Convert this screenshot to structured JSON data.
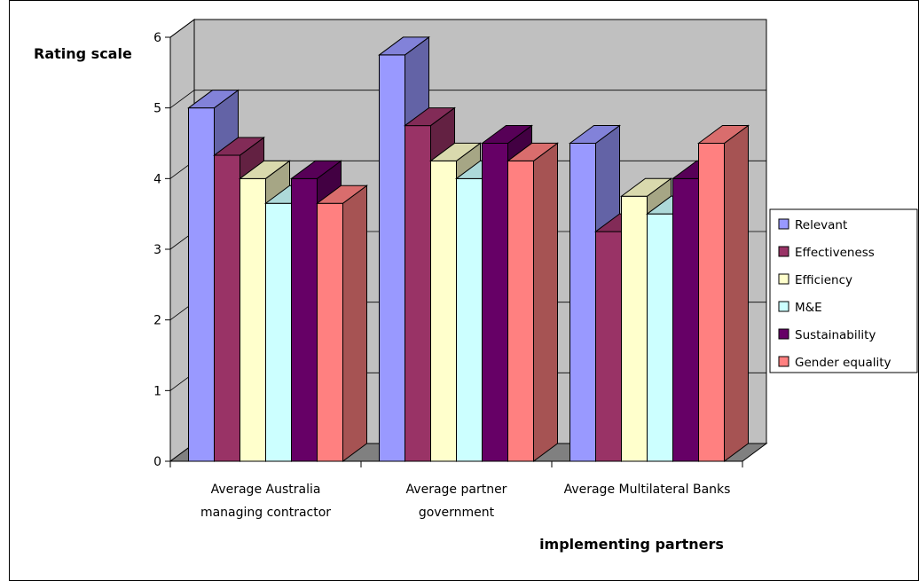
{
  "chart_data": {
    "type": "bar",
    "ylabel": "Rating scale",
    "xlabel": "implementing partners",
    "ylim": [
      0,
      6
    ],
    "yticks": [
      "0",
      "1",
      "2",
      "3",
      "4",
      "5",
      "6"
    ],
    "grid": true,
    "legend_position": "right",
    "categories": [
      [
        "Average Australia",
        "managing contractor"
      ],
      [
        "Average partner",
        "government"
      ],
      [
        "Average Multilateral Banks"
      ]
    ],
    "series": [
      {
        "name": "Relevant",
        "color": "#9999FF",
        "values": [
          5.0,
          5.75,
          4.5
        ]
      },
      {
        "name": "Effectiveness",
        "color": "#993366",
        "values": [
          4.33,
          4.75,
          3.25
        ]
      },
      {
        "name": "Efficiency",
        "color": "#FFFFCC",
        "values": [
          4.0,
          4.25,
          3.75
        ]
      },
      {
        "name": "M&E",
        "color": "#CCFFFF",
        "values": [
          3.65,
          4.0,
          3.5
        ]
      },
      {
        "name": "Sustainability",
        "color": "#660066",
        "values": [
          4.0,
          4.5,
          4.0
        ]
      },
      {
        "name": "Gender equality",
        "color": "#FF8080",
        "values": [
          3.65,
          4.25,
          4.5
        ]
      }
    ],
    "colors": {
      "wall": "#C0C0C0",
      "floor": "#808080",
      "gridline": "#000000"
    }
  }
}
